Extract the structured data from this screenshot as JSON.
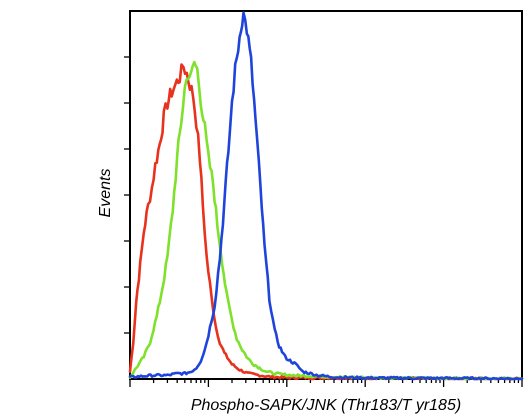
{
  "chart_data": {
    "type": "line",
    "title": "",
    "xlabel": "Phospho-SAPK/JNK (Thr183/T yr185)",
    "ylabel": "Events",
    "x_scale": "log",
    "xlim": [
      1,
      100000
    ],
    "ylim": [
      0,
      100
    ],
    "grid": false,
    "legend": "none",
    "series": [
      {
        "color": "#e8321e",
        "x": [
          1,
          1.1,
          1.2,
          1.35,
          1.5,
          1.7,
          1.9,
          2.1,
          2.4,
          2.7,
          3,
          3.4,
          3.8,
          4.3,
          4.8,
          5.3,
          5.8,
          6.4,
          7,
          7.8,
          8.5,
          9.5,
          11,
          12.5,
          14,
          16,
          20,
          25,
          32,
          45,
          60,
          90,
          200,
          500,
          2000,
          10000,
          100000
        ],
        "y": [
          2,
          10,
          21,
          31,
          40,
          47,
          52,
          58,
          64,
          71,
          75,
          78,
          80,
          82,
          85,
          83,
          80,
          77,
          70,
          60,
          47,
          33,
          22,
          14,
          10,
          7,
          4,
          2.5,
          1.5,
          1,
          0.6,
          0.4,
          0.3,
          0.3,
          0.2,
          0.1,
          0.1
        ]
      },
      {
        "color": "#7ee12b",
        "x": [
          1,
          1.2,
          1.5,
          1.8,
          2.2,
          2.6,
          3,
          3.5,
          4,
          4.5,
          5,
          5.5,
          6,
          6.6,
          7.2,
          8,
          9,
          10,
          11.5,
          13,
          15,
          17,
          20,
          23,
          27,
          32,
          38,
          45,
          55,
          70,
          90,
          120,
          200,
          500,
          2000,
          10000,
          100000
        ],
        "y": [
          0.5,
          3,
          6,
          10,
          17,
          25,
          33,
          46,
          60,
          70,
          79,
          83,
          82,
          86,
          84,
          76,
          68,
          60,
          53,
          42,
          32,
          23,
          16,
          11,
          8,
          5.5,
          4,
          3,
          2,
          1.5,
          1.2,
          1,
          0.8,
          0.5,
          0.3,
          0.2,
          0.1
        ]
      },
      {
        "color": "#1e44dc",
        "x": [
          1,
          2,
          3,
          4,
          5,
          6,
          7,
          8,
          9,
          10,
          12,
          14,
          16,
          18,
          20,
          22,
          24,
          26,
          28,
          31,
          35,
          40,
          46,
          52,
          60,
          70,
          80,
          95,
          110,
          130,
          160,
          200,
          250,
          400,
          1000,
          10000,
          100000
        ],
        "y": [
          0.5,
          1,
          1,
          1.5,
          1.5,
          2,
          3,
          5,
          8,
          12,
          20,
          33,
          48,
          62,
          75,
          84,
          90,
          96,
          99,
          95,
          86,
          70,
          52,
          36,
          22,
          13,
          9,
          6,
          5,
          4,
          2,
          1.5,
          1,
          0.5,
          0.3,
          0.2,
          0.1
        ]
      }
    ]
  }
}
